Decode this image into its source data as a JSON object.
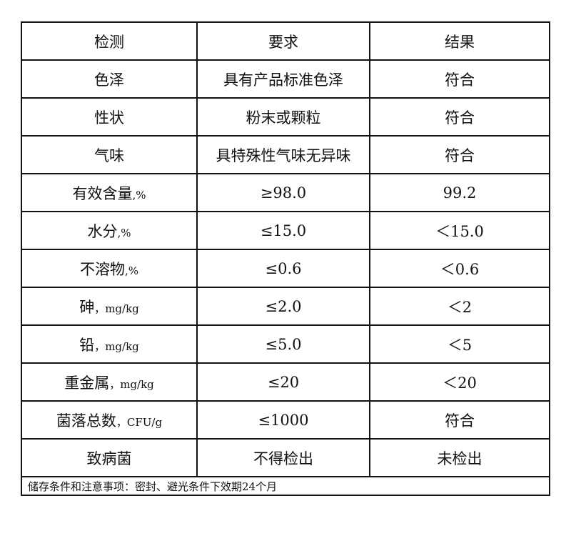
{
  "headers": [
    "检测",
    "要求",
    "结果"
  ],
  "rows": [
    {
      "item": "色泽",
      "unit": "",
      "requirement": "具有产品标准色泽",
      "result": "符合"
    },
    {
      "item": "性状",
      "unit": "",
      "requirement": "粉末或颗粒",
      "result": "符合"
    },
    {
      "item": "气味",
      "unit": "",
      "requirement": "具特殊性气味无异味",
      "result": "符合"
    },
    {
      "item": "有效含量",
      "unit": ",%",
      "requirement": "≥98.0",
      "result": "99.2"
    },
    {
      "item": "水分",
      "unit": ",%",
      "requirement": "≤15.0",
      "result": "＜15.0"
    },
    {
      "item": "不溶物",
      "unit": ",%",
      "requirement": "≤0.6",
      "result": "＜0.6"
    },
    {
      "item": "砷",
      "unit": "，mg/kg",
      "requirement": "≤2.0",
      "result": "＜2"
    },
    {
      "item": "铅",
      "unit": "，mg/kg",
      "requirement": "≤5.0",
      "result": "＜5"
    },
    {
      "item": "重金属",
      "unit": "，mg/kg",
      "requirement": "≤20",
      "result": "＜20"
    },
    {
      "item": "菌落总数",
      "unit": "，CFU/g",
      "requirement": "≤1000",
      "result": "符合"
    },
    {
      "item": "致病菌",
      "unit": "",
      "requirement": "不得检出",
      "result": "未检出"
    }
  ],
  "footer": "储存条件和注意事项：密封、避光条件下效期24个月"
}
